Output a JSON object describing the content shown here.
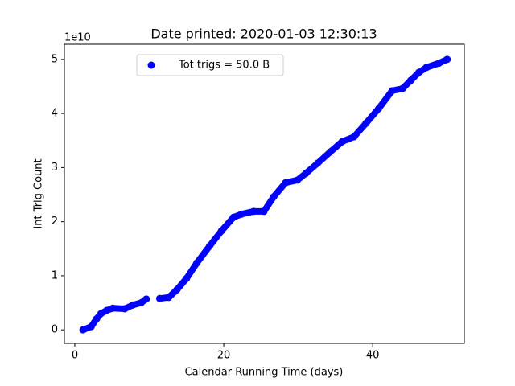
{
  "chart_data": {
    "type": "scatter",
    "title": "Date printed: 2020-01-03 12:30:13",
    "x_label": "Calendar Running Time (days)",
    "y_label": "Int Trig Count",
    "y_offset_label": "1e10",
    "legend_position": "upper center",
    "series": [
      {
        "name": "Tot trigs = 50.0 B",
        "color": "#0000ff",
        "x": [
          1.1,
          2.2,
          2.9,
          3.5,
          4.3,
          5.1,
          6.7,
          7.8,
          8.9,
          9.6,
          10.5,
          11.4,
          12.6,
          13.7,
          15,
          16.4,
          18.1,
          19.7,
          21.3,
          22.4,
          24,
          25.4,
          26.7,
          28.3,
          29.9,
          31,
          32.6,
          34.3,
          35.9,
          37.5,
          39.1,
          40.8,
          42.6,
          44,
          45.1,
          46.2,
          47.2,
          48.9,
          50
        ],
        "values": [
          0,
          0.06,
          0.2,
          0.3,
          0.36,
          0.4,
          0.39,
          0.46,
          0.5,
          0.57,
          null,
          0.58,
          0.6,
          0.74,
          0.95,
          1.24,
          1.55,
          1.83,
          2.08,
          2.14,
          2.19,
          2.19,
          2.46,
          2.72,
          2.77,
          2.89,
          3.08,
          3.29,
          3.48,
          3.57,
          3.82,
          4.09,
          4.42,
          4.46,
          4.61,
          4.76,
          4.85,
          4.93,
          5.0
        ]
      }
    ],
    "xlim": [
      -1.4,
      52.3
    ],
    "ylim": [
      -0.25,
      5.28
    ],
    "xticks": [
      0,
      20,
      40
    ],
    "yticks": [
      0,
      1,
      2,
      3,
      4,
      5
    ]
  }
}
